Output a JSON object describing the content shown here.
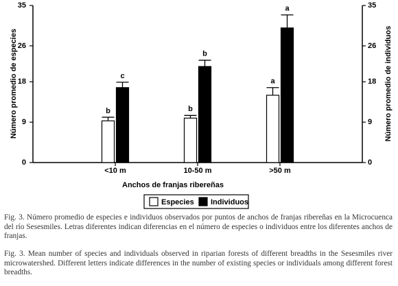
{
  "chart_data": {
    "type": "bar",
    "xlabel": "Anchos de franjas ribereñas",
    "ylabel": "Número promedio de especies",
    "y2label": "Número promedio de individuos",
    "categories": [
      "<10 m",
      "10-50 m",
      ">50 m"
    ],
    "series": [
      {
        "name": "Especies",
        "color": "#ffffff",
        "values": [
          9.3,
          9.9,
          15.0
        ],
        "errors": [
          0.8,
          0.6,
          1.7
        ],
        "letters": [
          "b",
          "b",
          "a"
        ]
      },
      {
        "name": "Individuos",
        "color": "#000000",
        "axis": "y2",
        "values": [
          16.7,
          21.4,
          30.0
        ],
        "errors": [
          1.2,
          1.4,
          2.9
        ],
        "letters": [
          "c",
          "b",
          "a"
        ]
      }
    ],
    "ylim": [
      0,
      35
    ],
    "yticks": [
      0,
      9,
      18,
      26,
      35
    ],
    "y2lim": [
      0,
      35
    ],
    "y2ticks": [
      0,
      9,
      18,
      26,
      35
    ],
    "legend": "bottom"
  },
  "captions": [
    "Fig. 3. Número promedio de especies e individuos observados por puntos de anchos de franjas ribereñas en la Microcuenca del río Sesesmiles. Letras diferentes indican  diferencias en el número de especies o individuos entre los diferentes anchos de franjas.",
    "Fig. 3. Mean number of species and individuals observed in riparian forests of different breadths in the Sesesmiles river microwatershed. Different letters indicate differences in the number of existing species or individuals among different forest breadths."
  ]
}
